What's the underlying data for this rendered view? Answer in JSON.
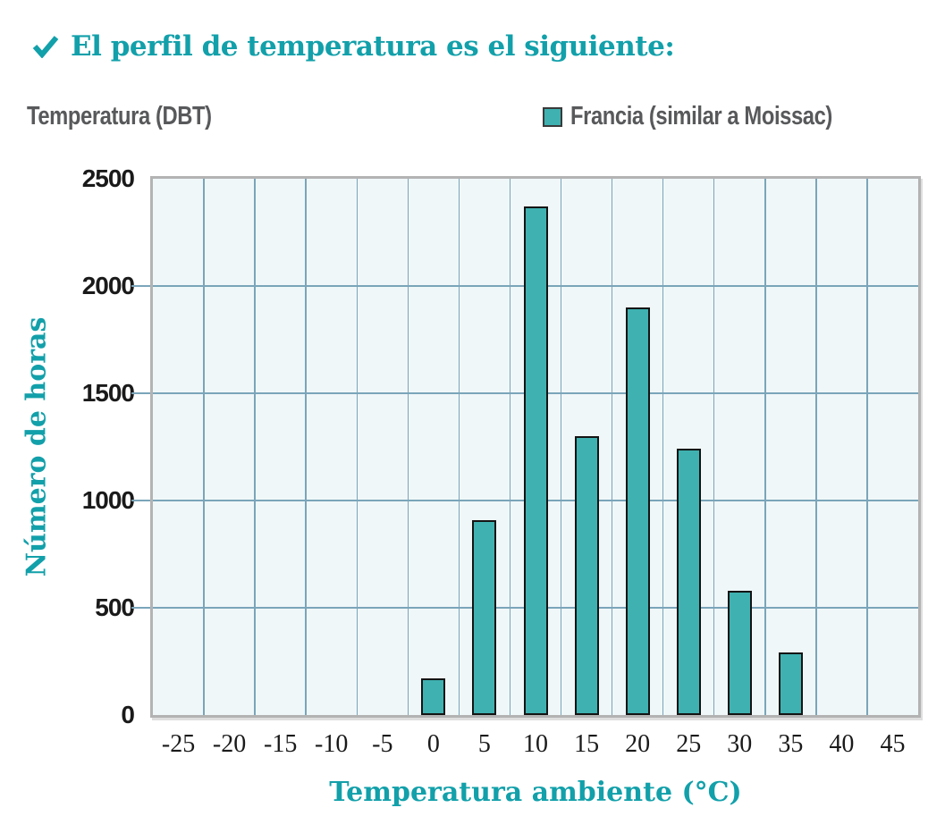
{
  "header": {
    "title": "El perfil de temperatura es el siguiente:"
  },
  "chart_header": {
    "axis_label_top": "Temperatura (DBT)",
    "legend": {
      "label": "Francia (similar a Moissac)",
      "swatch_color": "#3fb1b1"
    }
  },
  "chart_data": {
    "type": "bar",
    "title": "El perfil de temperatura es el siguiente:",
    "series_name": "Francia (similar a Moissac)",
    "categories": [
      "-25",
      "-20",
      "-15",
      "-10",
      "-5",
      "0",
      "5",
      "10",
      "15",
      "20",
      "25",
      "30",
      "35",
      "40",
      "45"
    ],
    "values": [
      0,
      0,
      0,
      0,
      0,
      170,
      910,
      2370,
      1300,
      1900,
      1240,
      580,
      290,
      0,
      0
    ],
    "xlabel": "Temperatura ambiente (°C)",
    "ylabel": "Número de horas",
    "ylim": [
      0,
      2500
    ],
    "yticks": [
      0,
      500,
      1000,
      1500,
      2000,
      2500
    ],
    "grid": "on",
    "legend_position": "top-right"
  },
  "colors": {
    "accent_teal": "#12a0aa",
    "bar_fill": "#3fb1b1",
    "bar_border": "#141414",
    "label_gray": "#58595b",
    "tick_text": "#1a1a1a",
    "grid_line": "#7aa5ba",
    "plot_bg": "#f0f7f8",
    "plot_border": "#b3b3b3"
  }
}
